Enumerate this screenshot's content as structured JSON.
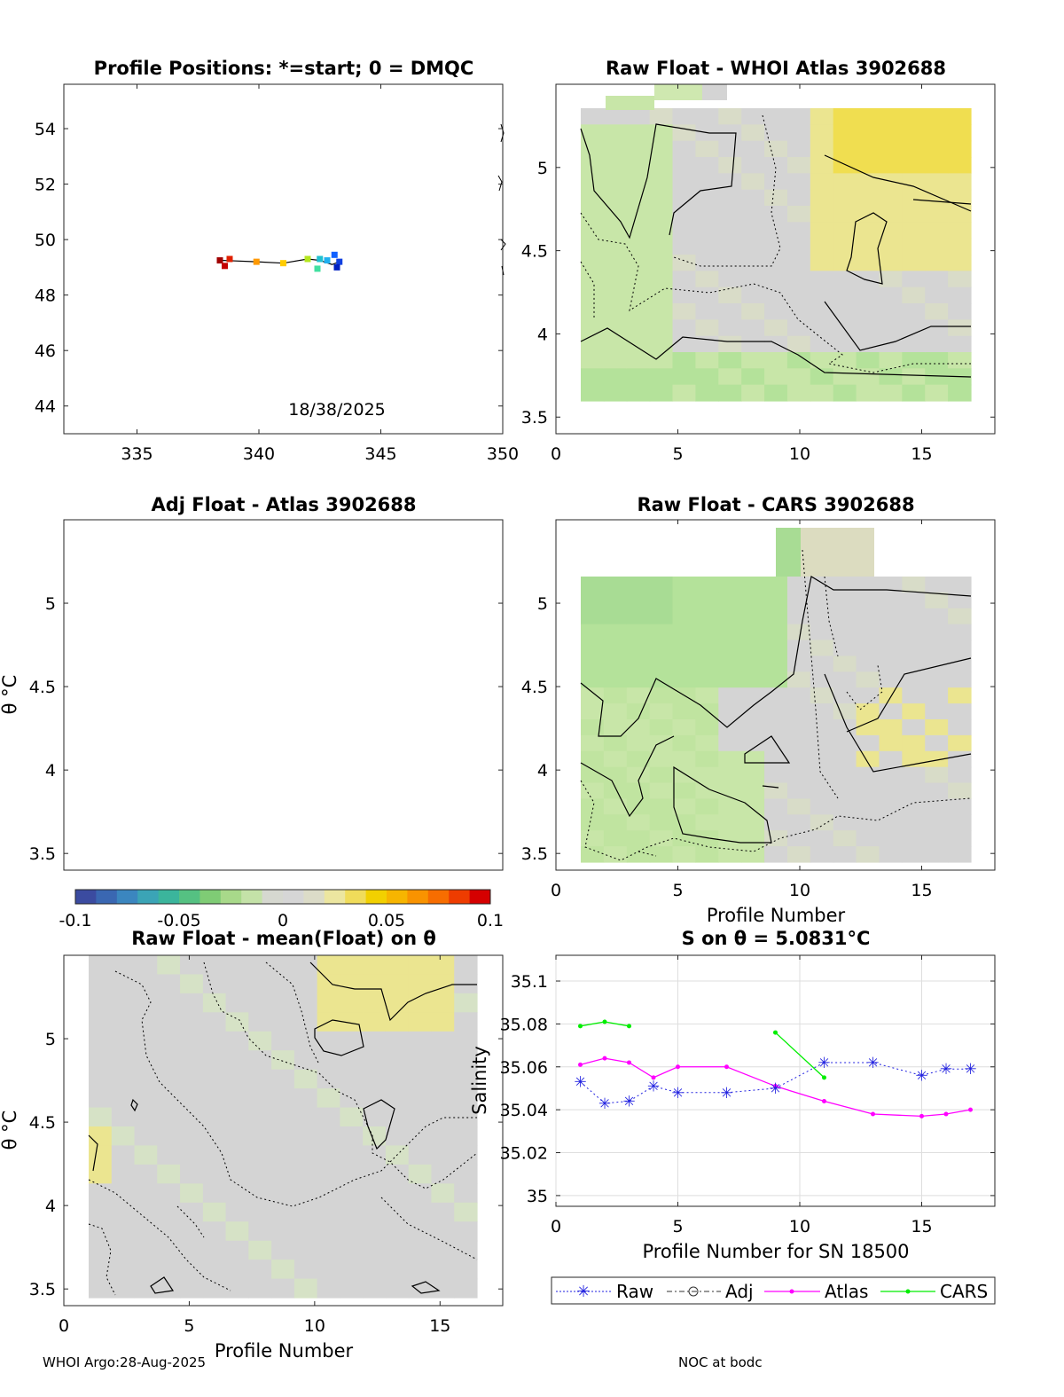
{
  "footer": {
    "left": "WHOI Argo:28-Aug-2025",
    "right": "NOC at bodc"
  },
  "colors": {
    "axis": "#262626",
    "grid": "#dedede",
    "raw": "#2020e0",
    "adj": "#333333",
    "atlas": "#ff00ff",
    "cars": "#00ee00",
    "track": "#000000"
  },
  "chart_data": [
    {
      "id": "positions",
      "type": "scatter",
      "title": "Profile Positions: *=start; 0 = DMQC",
      "xlim": [
        332,
        350
      ],
      "ylim": [
        43,
        55.6
      ],
      "xticks": [
        335,
        340,
        345,
        350
      ],
      "yticks": [
        44,
        46,
        48,
        50,
        52,
        54
      ],
      "annotation": "18/38/2025",
      "track": {
        "x": [
          338.5,
          339.9,
          341.0,
          342.0,
          342.5,
          343.0,
          343.3
        ],
        "y": [
          49.25,
          49.2,
          49.15,
          49.3,
          49.25,
          49.1,
          49.2
        ]
      },
      "points": [
        {
          "x": 338.4,
          "y": 49.25,
          "color": "#a00000"
        },
        {
          "x": 338.6,
          "y": 49.05,
          "color": "#c40000"
        },
        {
          "x": 338.8,
          "y": 49.3,
          "color": "#e02000"
        },
        {
          "x": 339.9,
          "y": 49.2,
          "color": "#ff9900"
        },
        {
          "x": 341.0,
          "y": 49.15,
          "color": "#ffcc00"
        },
        {
          "x": 342.0,
          "y": 49.3,
          "color": "#b4e61e"
        },
        {
          "x": 342.4,
          "y": 48.95,
          "color": "#40e0a0"
        },
        {
          "x": 342.5,
          "y": 49.3,
          "color": "#20c0d0"
        },
        {
          "x": 342.8,
          "y": 49.25,
          "color": "#20b0f0"
        },
        {
          "x": 343.1,
          "y": 49.45,
          "color": "#1060ff"
        },
        {
          "x": 343.3,
          "y": 49.2,
          "color": "#1040e0"
        },
        {
          "x": 343.2,
          "y": 49.0,
          "color": "#0020c0"
        }
      ]
    },
    {
      "id": "atlas",
      "type": "heatmap",
      "title": "Raw Float - WHOI Atlas  3902688",
      "xlim": [
        0,
        18
      ],
      "ylim": [
        3.4,
        5.5
      ],
      "xticks": [
        0,
        5,
        10,
        15
      ],
      "yticks": [
        3.5,
        4,
        4.5,
        5
      ],
      "xlabel": "",
      "ylabel": ""
    },
    {
      "id": "adj",
      "type": "heatmap",
      "title": "Adj Float - Atlas  3902688",
      "xlim": [
        0,
        18
      ],
      "ylim": [
        3.4,
        5.5
      ],
      "yticks": [
        3.5,
        4,
        4.5,
        5
      ],
      "ylabel": "θ °C"
    },
    {
      "id": "cars",
      "type": "heatmap",
      "title": "Raw Float - CARS  3902688",
      "xlim": [
        0,
        18
      ],
      "ylim": [
        3.4,
        5.5
      ],
      "xticks": [
        0,
        5,
        10,
        15
      ],
      "yticks": [
        3.5,
        4,
        4.5,
        5
      ],
      "xlabel": "Profile Number"
    },
    {
      "id": "colorbar",
      "type": "colorbar",
      "range": [
        -0.1,
        0.1
      ],
      "ticks": [
        "-0.1",
        "-0.05",
        "0",
        "0.05",
        "0.1"
      ]
    },
    {
      "id": "anom",
      "type": "heatmap",
      "title": "Raw Float - mean(Float) on θ",
      "xlim": [
        0,
        17.5
      ],
      "ylim": [
        3.4,
        5.5
      ],
      "xticks": [
        0,
        5,
        10,
        15
      ],
      "yticks": [
        3.5,
        4,
        4.5,
        5
      ],
      "xlabel": "Profile Number",
      "ylabel": "θ °C"
    },
    {
      "id": "salinity",
      "type": "line",
      "title": "S on θ = 5.0831°C",
      "xlim": [
        0,
        18
      ],
      "ylim": [
        34.995,
        35.112
      ],
      "xticks": [
        0,
        5,
        10,
        15
      ],
      "yticks": [
        35,
        35.02,
        35.04,
        35.06,
        35.08,
        35.1
      ],
      "ytick_labels": [
        "35",
        "35.02",
        "35.04",
        "35.06",
        "35.08",
        "35.1"
      ],
      "xlabel": "Profile Number for SN 18500",
      "ylabel": "Salinity",
      "series": [
        {
          "name": "Raw",
          "x": [
            1,
            2,
            3,
            4,
            5,
            7,
            9,
            11,
            13,
            15,
            16,
            17
          ],
          "y": [
            35.053,
            35.043,
            35.044,
            35.051,
            35.048,
            35.048,
            35.05,
            35.062,
            35.062,
            35.056,
            35.059,
            35.059
          ]
        },
        {
          "name": "Adj",
          "x": [],
          "y": []
        },
        {
          "name": "Atlas",
          "x": [
            1,
            2,
            3,
            4,
            5,
            7,
            9,
            11,
            13,
            15,
            16,
            17
          ],
          "y": [
            35.061,
            35.064,
            35.062,
            35.055,
            35.06,
            35.06,
            35.051,
            35.044,
            35.038,
            35.037,
            35.038,
            35.04
          ]
        },
        {
          "name": "CARS",
          "segments": [
            {
              "x": [
                1,
                2,
                3
              ],
              "y": [
                35.079,
                35.081,
                35.079
              ]
            },
            {
              "x": [
                9,
                11
              ],
              "y": [
                35.076,
                35.055
              ]
            }
          ]
        }
      ],
      "legend": [
        "Raw",
        "Adj",
        "Atlas",
        "CARS"
      ]
    }
  ]
}
